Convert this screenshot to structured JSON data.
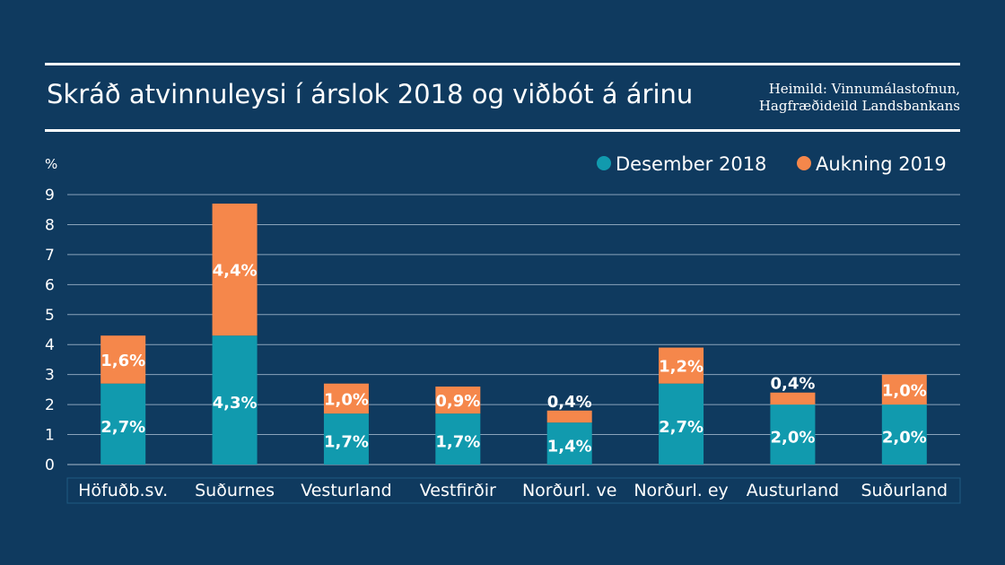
{
  "title": "Skráð atvinnuleysi í árslok 2018 og viðbót á árinu",
  "source": [
    "Heimild: Vinnumálastofnun,",
    "Hagfræðideild Landsbankans"
  ],
  "colors": {
    "background": "#0f3a5f",
    "series1": "#119aae",
    "series2": "#f5874b",
    "grid": "#8aa3bb"
  },
  "chart_data": {
    "type": "bar",
    "stacked": true,
    "title": "Skráð atvinnuleysi í árslok 2018 og viðbót á árinu",
    "ylabel": "%",
    "ylim": [
      0,
      9
    ],
    "yticks": [
      0,
      1,
      2,
      3,
      4,
      5,
      6,
      7,
      8,
      9
    ],
    "grid": true,
    "legend_position": "top-right",
    "categories": [
      "Höfuðb.sv.",
      "Suðurnes",
      "Vesturland",
      "Vestfirðir",
      "Norðurl. ve",
      "Norðurl. ey",
      "Austurland",
      "Suðurland"
    ],
    "series": [
      {
        "name": "Desember 2018",
        "values": [
          2.7,
          4.3,
          1.7,
          1.7,
          1.4,
          2.7,
          2.0,
          2.0
        ],
        "labels": [
          "2,7%",
          "4,3%",
          "1,7%",
          "1,7%",
          "1,4%",
          "2,7%",
          "2,0%",
          "2,0%"
        ]
      },
      {
        "name": "Aukning 2019",
        "values": [
          1.6,
          4.4,
          1.0,
          0.9,
          0.4,
          1.2,
          0.4,
          1.0
        ],
        "labels": [
          "1,6%",
          "4,4%",
          "1,0%",
          "0,9%",
          "0,4%",
          "1,2%",
          "0,4%",
          "1,0%"
        ]
      }
    ]
  }
}
